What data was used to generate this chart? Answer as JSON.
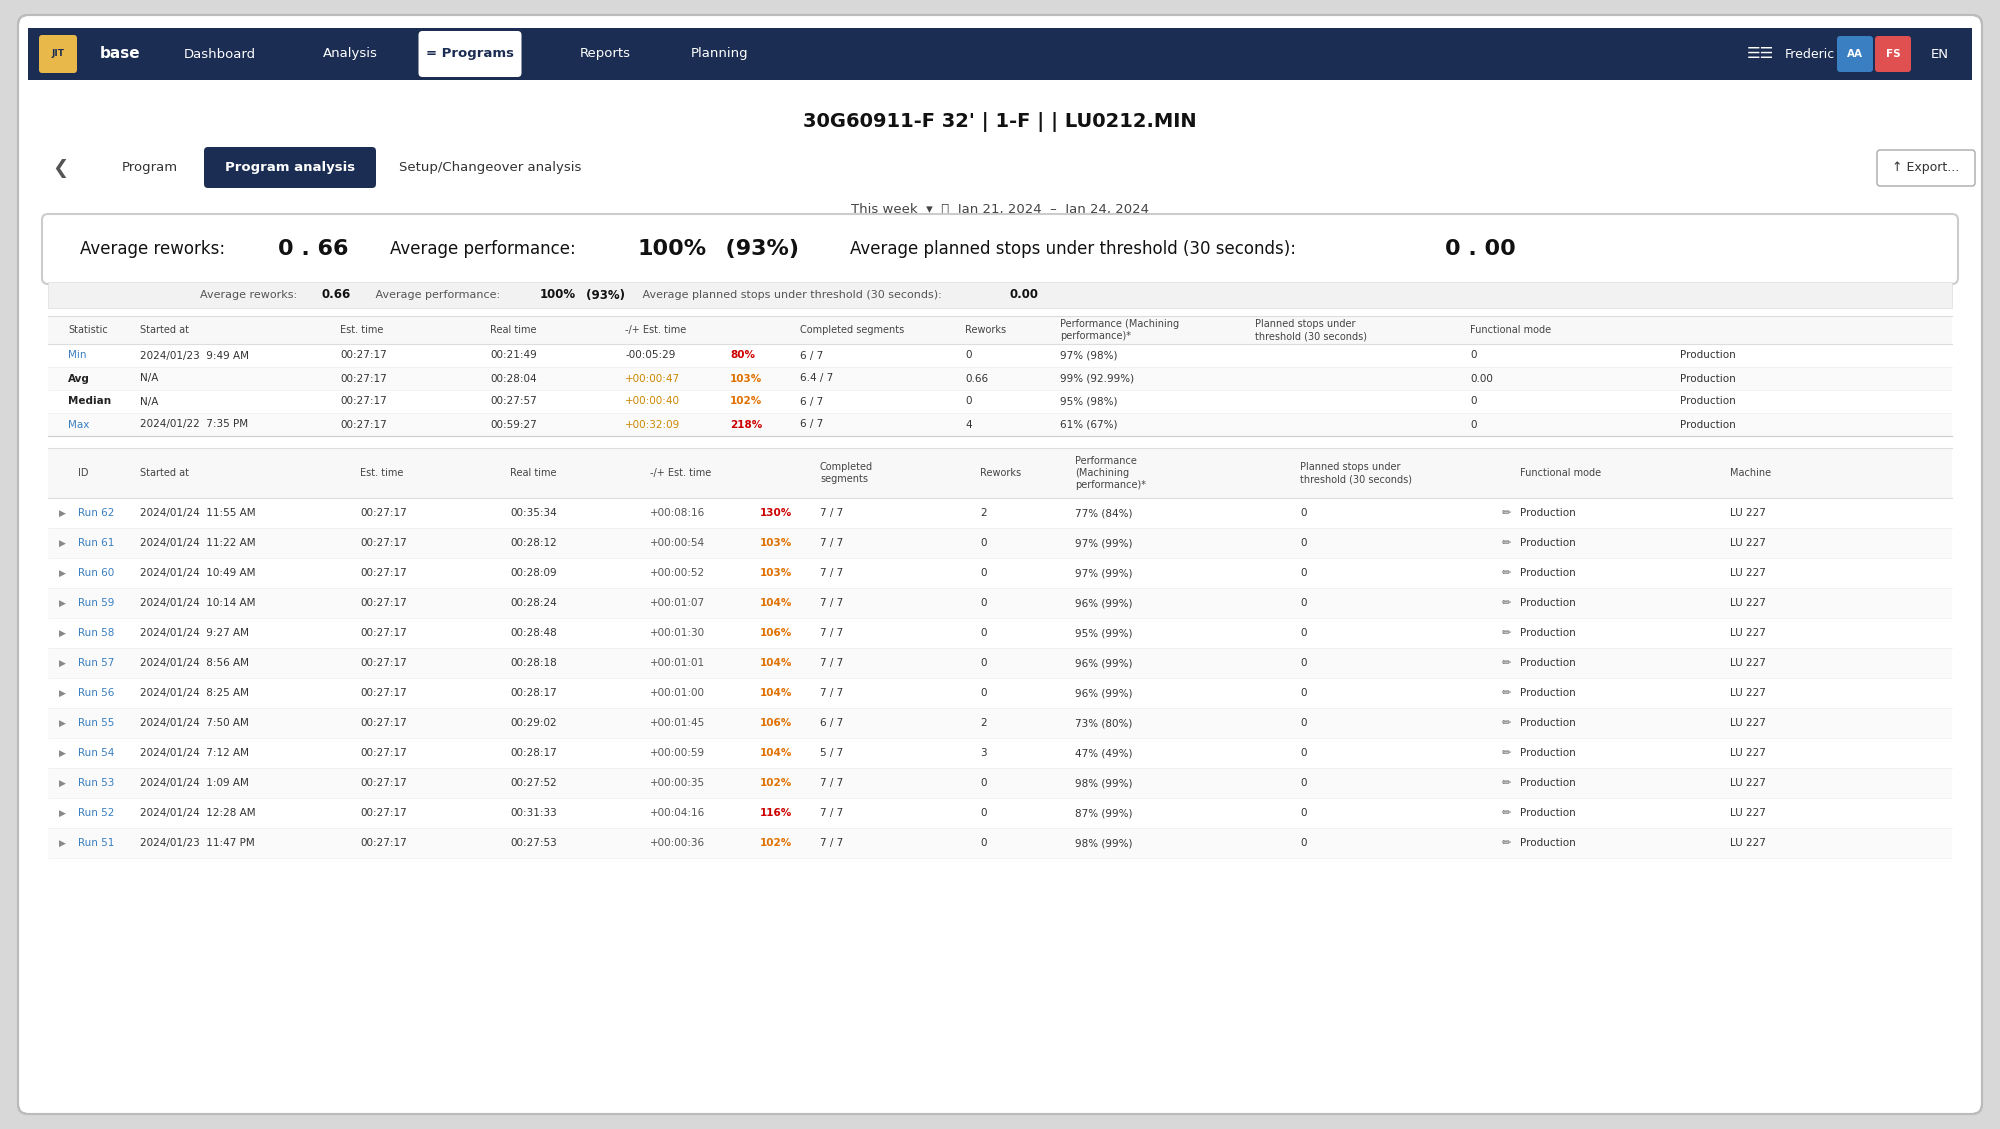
{
  "title_program": "30G60911-F 32' | 1-F | | LU0212.MIN",
  "nav_items": [
    "Dashboard",
    "Analysis",
    "Programs",
    "Reports",
    "Planning"
  ],
  "nav_active": "Programs",
  "sub_tabs": [
    "Program",
    "Program analysis",
    "Setup/Changeover analysis"
  ],
  "sub_active": "Program analysis",
  "date_range": "Jan 21, 2024  –  Jan 24, 2024",
  "this_week": "This week",
  "stat_rows": [
    [
      "Min",
      "2024/01/23  9:49 AM",
      "00:27:17",
      "00:21:49",
      "-00:05:29",
      "80%",
      "6 / 7",
      "0",
      "97% (98%)",
      "0",
      "Production"
    ],
    [
      "Avg",
      "N/A",
      "00:27:17",
      "00:28:04",
      "+00:00:47",
      "103%",
      "6.4 / 7",
      "0.66",
      "99% (92.99%)",
      "0.00",
      "Production"
    ],
    [
      "Median",
      "N/A",
      "00:27:17",
      "00:27:57",
      "+00:00:40",
      "102%",
      "6 / 7",
      "0",
      "95% (98%)",
      "0",
      "Production"
    ],
    [
      "Max",
      "2024/01/22  7:35 PM",
      "00:27:17",
      "00:59:27",
      "+00:32:09",
      "218%",
      "6 / 7",
      "4",
      "61% (67%)",
      "0",
      "Production"
    ]
  ],
  "run_rows": [
    [
      "Run 62",
      "2024/01/24  11:55 AM",
      "00:27:17",
      "00:35:34",
      "+00:08:16",
      "130%",
      "7 / 7",
      "2",
      "77% (84%)",
      "0",
      "Production",
      "LU 227"
    ],
    [
      "Run 61",
      "2024/01/24  11:22 AM",
      "00:27:17",
      "00:28:12",
      "+00:00:54",
      "103%",
      "7 / 7",
      "0",
      "97% (99%)",
      "0",
      "Production",
      "LU 227"
    ],
    [
      "Run 60",
      "2024/01/24  10:49 AM",
      "00:27:17",
      "00:28:09",
      "+00:00:52",
      "103%",
      "7 / 7",
      "0",
      "97% (99%)",
      "0",
      "Production",
      "LU 227"
    ],
    [
      "Run 59",
      "2024/01/24  10:14 AM",
      "00:27:17",
      "00:28:24",
      "+00:01:07",
      "104%",
      "7 / 7",
      "0",
      "96% (99%)",
      "0",
      "Production",
      "LU 227"
    ],
    [
      "Run 58",
      "2024/01/24  9:27 AM",
      "00:27:17",
      "00:28:48",
      "+00:01:30",
      "106%",
      "7 / 7",
      "0",
      "95% (99%)",
      "0",
      "Production",
      "LU 227"
    ],
    [
      "Run 57",
      "2024/01/24  8:56 AM",
      "00:27:17",
      "00:28:18",
      "+00:01:01",
      "104%",
      "7 / 7",
      "0",
      "96% (99%)",
      "0",
      "Production",
      "LU 227"
    ],
    [
      "Run 56",
      "2024/01/24  8:25 AM",
      "00:27:17",
      "00:28:17",
      "+00:01:00",
      "104%",
      "7 / 7",
      "0",
      "96% (99%)",
      "0",
      "Production",
      "LU 227"
    ],
    [
      "Run 55",
      "2024/01/24  7:50 AM",
      "00:27:17",
      "00:29:02",
      "+00:01:45",
      "106%",
      "6 / 7",
      "2",
      "73% (80%)",
      "0",
      "Production",
      "LU 227"
    ],
    [
      "Run 54",
      "2024/01/24  7:12 AM",
      "00:27:17",
      "00:28:17",
      "+00:00:59",
      "104%",
      "5 / 7",
      "3",
      "47% (49%)",
      "0",
      "Production",
      "LU 227"
    ],
    [
      "Run 53",
      "2024/01/24  1:09 AM",
      "00:27:17",
      "00:27:52",
      "+00:00:35",
      "102%",
      "7 / 7",
      "0",
      "98% (99%)",
      "0",
      "Production",
      "LU 227"
    ],
    [
      "Run 52",
      "2024/01/24  12:28 AM",
      "00:27:17",
      "00:31:33",
      "+00:04:16",
      "116%",
      "7 / 7",
      "0",
      "87% (99%)",
      "0",
      "Production",
      "LU 227"
    ],
    [
      "Run 51",
      "2024/01/23  11:47 PM",
      "00:27:17",
      "00:27:53",
      "+00:00:36",
      "102%",
      "7 / 7",
      "0",
      "98% (99%)",
      "0",
      "Production",
      "LU 227"
    ]
  ],
  "colors": {
    "nav_bg": "#1b2d52",
    "link_blue": "#3a7fc1",
    "sub_active_bg": "#1b2d52",
    "red_text": "#cc0000",
    "orange_text": "#e07000",
    "green_text": "#007700"
  }
}
